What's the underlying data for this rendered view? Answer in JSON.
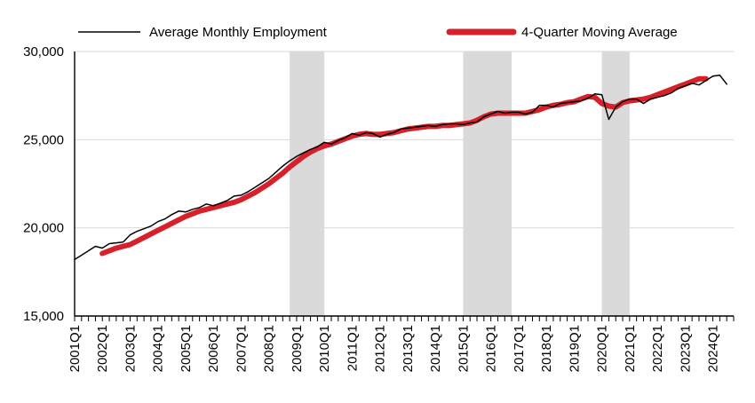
{
  "chart_data": {
    "type": "line",
    "title": "",
    "xlabel": "",
    "ylabel": "",
    "ylim": [
      15000,
      30000
    ],
    "yticks": [
      "15,000",
      "20,000",
      "25,000",
      "30,000"
    ],
    "grid": "horizontal",
    "legend": "top",
    "x_tick_labels": [
      "2001Q1",
      "2002Q1",
      "2003Q1",
      "2004Q1",
      "2005Q1",
      "2006Q1",
      "2007Q1",
      "2008Q1",
      "2009Q1",
      "2010Q1",
      "2011Q1",
      "2012Q1",
      "2013Q1",
      "2014Q1",
      "2015Q1",
      "2016Q1",
      "2017Q1",
      "2018Q1",
      "2019Q1",
      "2020Q1",
      "2021Q1",
      "2022Q1",
      "2023Q1",
      "2024Q1"
    ],
    "shaded_periods": [
      {
        "start": "2008Q4",
        "end": "2010Q1"
      },
      {
        "start": "2015Q1",
        "end": "2016Q4"
      },
      {
        "start": "2020Q1",
        "end": "2021Q1"
      }
    ],
    "colors": {
      "monthly": "#000000",
      "moving": "#d6212b",
      "shade": "#dadadb",
      "grid": "#d9d9d9"
    },
    "series": [
      {
        "name": "Average Monthly Employment",
        "start": "2001Q1",
        "values": [
          18200,
          18450,
          18700,
          18950,
          18850,
          19100,
          19150,
          19200,
          19600,
          19800,
          19950,
          20100,
          20350,
          20500,
          20750,
          20950,
          20900,
          21050,
          21150,
          21350,
          21250,
          21400,
          21550,
          21800,
          21850,
          22050,
          22300,
          22550,
          22800,
          23150,
          23500,
          23800,
          24050,
          24250,
          24450,
          24600,
          24850,
          24750,
          24950,
          25100,
          25350,
          25250,
          25400,
          25350,
          25150,
          25300,
          25400,
          25600,
          25650,
          25700,
          25750,
          25800,
          25750,
          25850,
          25900,
          25900,
          25850,
          25950,
          26000,
          26300,
          26450,
          26600,
          26500,
          26550,
          26550,
          26450,
          26550,
          26950,
          26950,
          26850,
          27050,
          27100,
          27150,
          27200,
          27350,
          27600,
          27550,
          26150,
          26850,
          27150,
          27300,
          27300,
          27050,
          27300,
          27400,
          27500,
          27650,
          27900,
          28050,
          28200,
          28100,
          28350,
          28600,
          28650,
          28150
        ]
      },
      {
        "name": "4-Quarter Moving Average",
        "start": "2002Q1",
        "values": [
          18550,
          18700,
          18850,
          18950,
          19050,
          19250,
          19450,
          19650,
          19850,
          20050,
          20250,
          20450,
          20650,
          20800,
          20950,
          21050,
          21150,
          21250,
          21350,
          21450,
          21600,
          21800,
          22000,
          22250,
          22500,
          22800,
          23100,
          23450,
          23750,
          24050,
          24300,
          24500,
          24650,
          24750,
          24900,
          25050,
          25200,
          25300,
          25350,
          25300,
          25300,
          25350,
          25400,
          25500,
          25600,
          25650,
          25700,
          25750,
          25750,
          25800,
          25800,
          25850,
          25900,
          25950,
          26100,
          26300,
          26450,
          26500,
          26500,
          26500,
          26500,
          26500,
          26600,
          26700,
          26850,
          26950,
          27000,
          27100,
          27150,
          27300,
          27450,
          27400,
          27050,
          26900,
          26850,
          27100,
          27200,
          27250,
          27300,
          27400,
          27550,
          27700,
          27850,
          28000,
          28150,
          28300,
          28450,
          28450
        ]
      }
    ]
  }
}
